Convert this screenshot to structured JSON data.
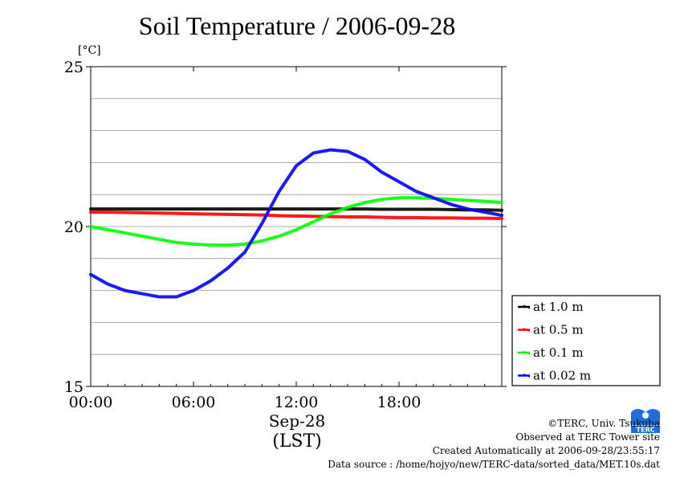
{
  "chart_data": {
    "type": "line",
    "title": "Soil Temperature / 2006-09-28",
    "ylabel": "[°C]",
    "xlabel_date": "Sep-28",
    "xlabel_tz": "(LST)",
    "ylim": [
      15,
      25
    ],
    "xlim": [
      0,
      24
    ],
    "yticks": [
      15,
      20,
      25
    ],
    "xticks": [
      {
        "v": 0,
        "label": "00:00"
      },
      {
        "v": 6,
        "label": "06:00"
      },
      {
        "v": 12,
        "label": "12:00"
      },
      {
        "v": 18,
        "label": "18:00"
      }
    ],
    "grid": true,
    "legend_position": "right",
    "x": [
      0,
      1,
      2,
      3,
      4,
      5,
      6,
      7,
      8,
      9,
      10,
      11,
      12,
      13,
      14,
      15,
      16,
      17,
      18,
      19,
      20,
      21,
      22,
      23,
      24
    ],
    "series": [
      {
        "name": "at 1.0 m",
        "color": "#000000",
        "values": [
          20.55,
          20.55,
          20.55,
          20.55,
          20.55,
          20.55,
          20.55,
          20.55,
          20.55,
          20.55,
          20.55,
          20.55,
          20.55,
          20.55,
          20.55,
          20.55,
          20.55,
          20.54,
          20.54,
          20.54,
          20.54,
          20.53,
          20.52,
          20.52,
          20.51
        ]
      },
      {
        "name": "at 0.5 m",
        "color": "#ff0000",
        "values": [
          20.45,
          20.45,
          20.44,
          20.43,
          20.42,
          20.41,
          20.4,
          20.39,
          20.38,
          20.37,
          20.36,
          20.34,
          20.33,
          20.32,
          20.31,
          20.3,
          20.3,
          20.29,
          20.28,
          20.28,
          20.27,
          20.27,
          20.26,
          20.26,
          20.25
        ]
      },
      {
        "name": "at 0.1 m",
        "color": "#00ff00",
        "values": [
          20.0,
          19.9,
          19.8,
          19.7,
          19.6,
          19.5,
          19.45,
          19.42,
          19.42,
          19.45,
          19.55,
          19.7,
          19.9,
          20.15,
          20.4,
          20.6,
          20.75,
          20.85,
          20.9,
          20.9,
          20.88,
          20.85,
          20.82,
          20.79,
          20.75
        ]
      },
      {
        "name": "at 0.02 m",
        "color": "#0000ff",
        "values": [
          18.5,
          18.2,
          18.0,
          17.9,
          17.8,
          17.8,
          18.0,
          18.3,
          18.7,
          19.2,
          20.1,
          21.1,
          21.9,
          22.3,
          22.4,
          22.35,
          22.1,
          21.7,
          21.4,
          21.1,
          20.9,
          20.7,
          20.55,
          20.45,
          20.35
        ]
      }
    ]
  },
  "footer": {
    "copyright": "©TERC, Univ. Tsukuba",
    "observed": "Observed at TERC Tower site",
    "created": "Created Automatically at 2006-09-28/23:55:17",
    "source": "Data source : /home/hojyo/new/TERC-data/sorted_data/MET.10s.dat"
  },
  "logo": {
    "name": "terc-logo",
    "text": "TERC",
    "color": "#1e6fd9"
  }
}
